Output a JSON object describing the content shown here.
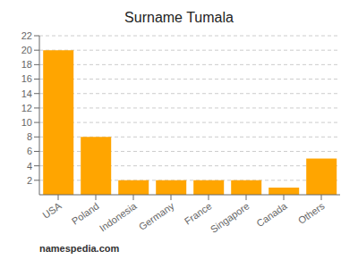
{
  "chart_data": {
    "type": "bar",
    "title": "Surname Tumala",
    "categories": [
      "USA",
      "Poland",
      "Indonesia",
      "Germany",
      "France",
      "Singapore",
      "Canada",
      "Others"
    ],
    "values": [
      20,
      8,
      2,
      2,
      2,
      2,
      1,
      5
    ],
    "color": "#FFA500",
    "ylim": [
      0,
      22
    ],
    "yticks": [
      2,
      4,
      6,
      8,
      10,
      12,
      14,
      16,
      18,
      20,
      22
    ],
    "grid": true,
    "annotations": [
      "namespedia.com"
    ]
  }
}
